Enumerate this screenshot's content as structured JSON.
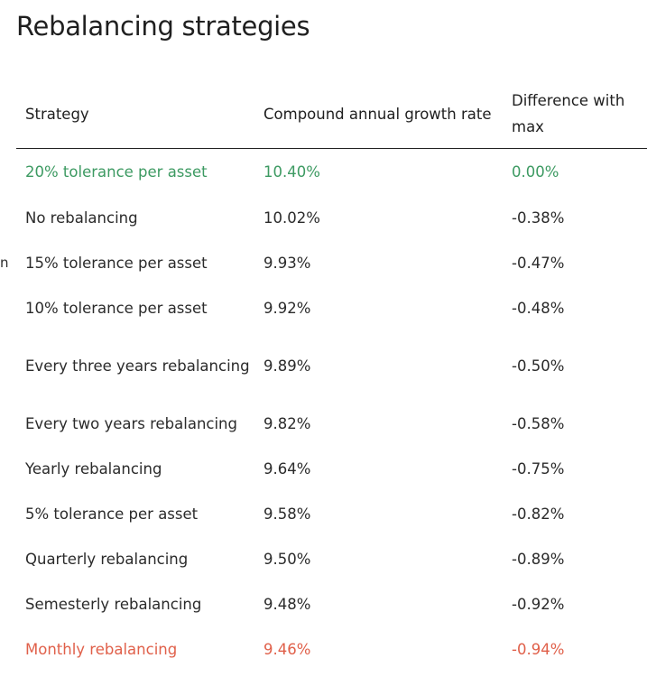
{
  "title": "Rebalancing strategies",
  "stray_char": "n",
  "colors": {
    "best": "#3d9a62",
    "worst": "#e0604a"
  },
  "table": {
    "headers": [
      "Strategy",
      "Compound annual growth rate",
      "Difference with max"
    ],
    "rows": [
      {
        "strategy": "20% tolerance per asset",
        "cagr": "10.40%",
        "diff": "0.00%"
      },
      {
        "strategy": "No rebalancing",
        "cagr": "10.02%",
        "diff": "-0.38%"
      },
      {
        "strategy": "15% tolerance per asset",
        "cagr": "9.93%",
        "diff": "-0.47%"
      },
      {
        "strategy": "10% tolerance per asset",
        "cagr": "9.92%",
        "diff": "-0.48%"
      },
      {
        "strategy": "Every three years rebalancing",
        "cagr": "9.89%",
        "diff": "-0.50%"
      },
      {
        "strategy": "Every two years rebalancing",
        "cagr": "9.82%",
        "diff": "-0.58%"
      },
      {
        "strategy": "Yearly rebalancing",
        "cagr": "9.64%",
        "diff": "-0.75%"
      },
      {
        "strategy": "5% tolerance per asset",
        "cagr": "9.58%",
        "diff": "-0.82%"
      },
      {
        "strategy": "Quarterly rebalancing",
        "cagr": "9.50%",
        "diff": "-0.89%"
      },
      {
        "strategy": "Semesterly rebalancing",
        "cagr": "9.48%",
        "diff": "-0.92%"
      },
      {
        "strategy": "Monthly rebalancing",
        "cagr": "9.46%",
        "diff": "-0.94%"
      }
    ]
  }
}
